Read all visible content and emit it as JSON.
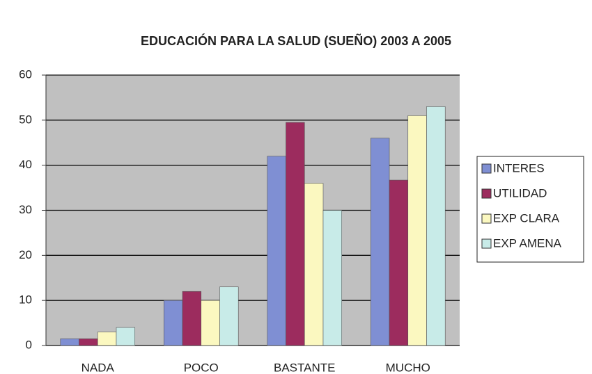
{
  "chart_data": {
    "type": "bar",
    "title": "EDUCACIÓN PARA LA SALUD (SUEÑO) 2003 A 2005",
    "categories": [
      "NADA",
      "POCO",
      "BASTANTE",
      "MUCHO"
    ],
    "series": [
      {
        "name": "INTERES",
        "color": "#7f8fd3",
        "values": [
          1.5,
          10,
          42,
          46
        ]
      },
      {
        "name": "UTILIDAD",
        "color": "#9c2c5e",
        "values": [
          1.5,
          12,
          49.5,
          36.7
        ]
      },
      {
        "name": "EXP CLARA",
        "color": "#fbf8c0",
        "values": [
          3,
          10,
          36,
          51
        ]
      },
      {
        "name": "EXP AMENA",
        "color": "#c8ebe8",
        "values": [
          4,
          13,
          30,
          53
        ]
      }
    ],
    "ylim": [
      0,
      60
    ],
    "yticks": [
      0,
      10,
      20,
      30,
      40,
      50,
      60
    ],
    "grid": true,
    "legend": "right"
  }
}
